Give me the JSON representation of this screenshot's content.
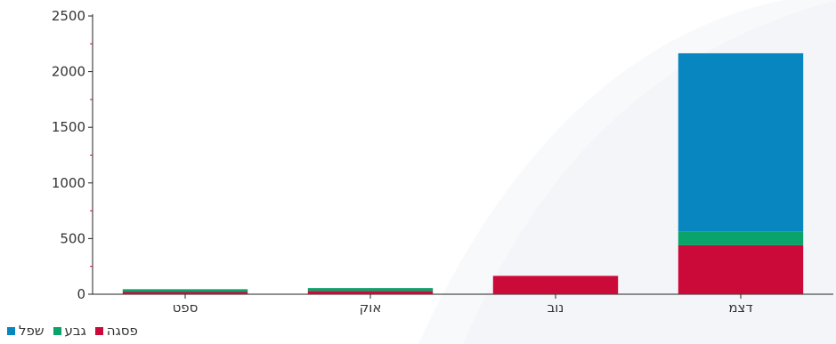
{
  "chart_data": {
    "type": "bar",
    "stacked": true,
    "categories": [
      "ספט",
      "אוק",
      "נוב",
      "דצמ"
    ],
    "series": [
      {
        "name": "פסגה",
        "color": "#cc0a3a",
        "values": [
          20,
          30,
          165,
          440
        ]
      },
      {
        "name": "גבע",
        "color": "#0aa36a",
        "values": [
          25,
          25,
          0,
          125
        ]
      },
      {
        "name": "שפל",
        "color": "#0786c0",
        "values": [
          0,
          0,
          0,
          1600
        ]
      }
    ],
    "ylim": [
      0,
      2500
    ],
    "yticks": [
      0,
      500,
      1000,
      1500,
      2000,
      2500
    ],
    "grid": false,
    "legend_position": "bottom-left"
  }
}
